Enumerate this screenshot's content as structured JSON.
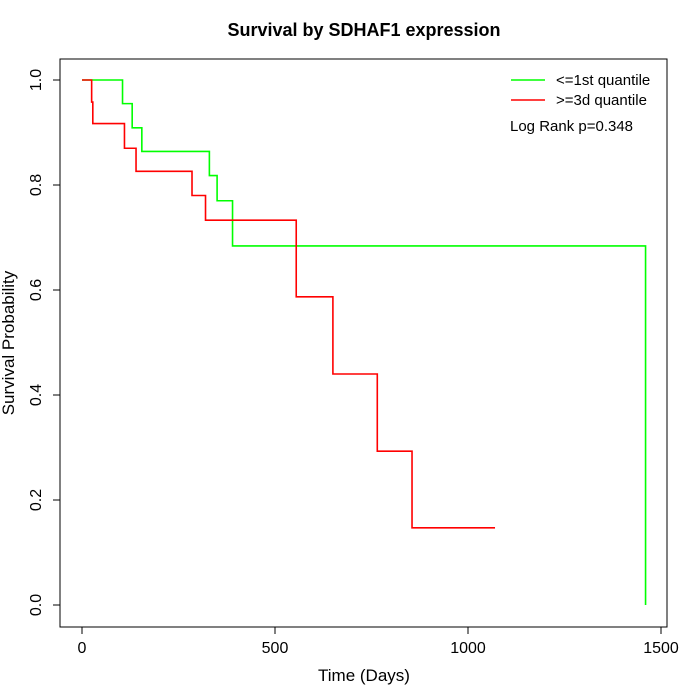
{
  "chart_data": {
    "type": "line",
    "title": "Survival by SDHAF1 expression",
    "xlabel": "Time (Days)",
    "ylabel": "Survival Probability",
    "xlim": [
      0,
      1500
    ],
    "ylim": [
      0,
      1.0
    ],
    "x_ticks": [
      0,
      500,
      1000,
      1500
    ],
    "y_ticks": [
      0.0,
      0.2,
      0.4,
      0.6,
      0.8,
      1.0
    ],
    "x_tick_labels": [
      "0",
      "500",
      "1000",
      "1500"
    ],
    "y_tick_labels": [
      "0.0",
      "0.2",
      "0.4",
      "0.6",
      "0.8",
      "1.0"
    ],
    "grid": false,
    "legend_position": "top-right",
    "annotation": "Log Rank p=0.348",
    "series": [
      {
        "name": "<=1st quantile",
        "color": "#00ff00",
        "step": "post",
        "x": [
          0,
          105,
          130,
          155,
          330,
          350,
          390,
          1460,
          1460
        ],
        "y": [
          1.0,
          0.955,
          0.909,
          0.864,
          0.818,
          0.77,
          0.684,
          0.684,
          0.0
        ]
      },
      {
        "name": ">=3d quantile",
        "color": "#ff0000",
        "step": "post",
        "x": [
          0,
          25,
          28,
          110,
          140,
          285,
          320,
          555,
          650,
          765,
          855,
          1070
        ],
        "y": [
          1.0,
          0.958,
          0.917,
          0.87,
          0.826,
          0.78,
          0.733,
          0.587,
          0.44,
          0.293,
          0.147,
          0.147
        ]
      }
    ]
  }
}
